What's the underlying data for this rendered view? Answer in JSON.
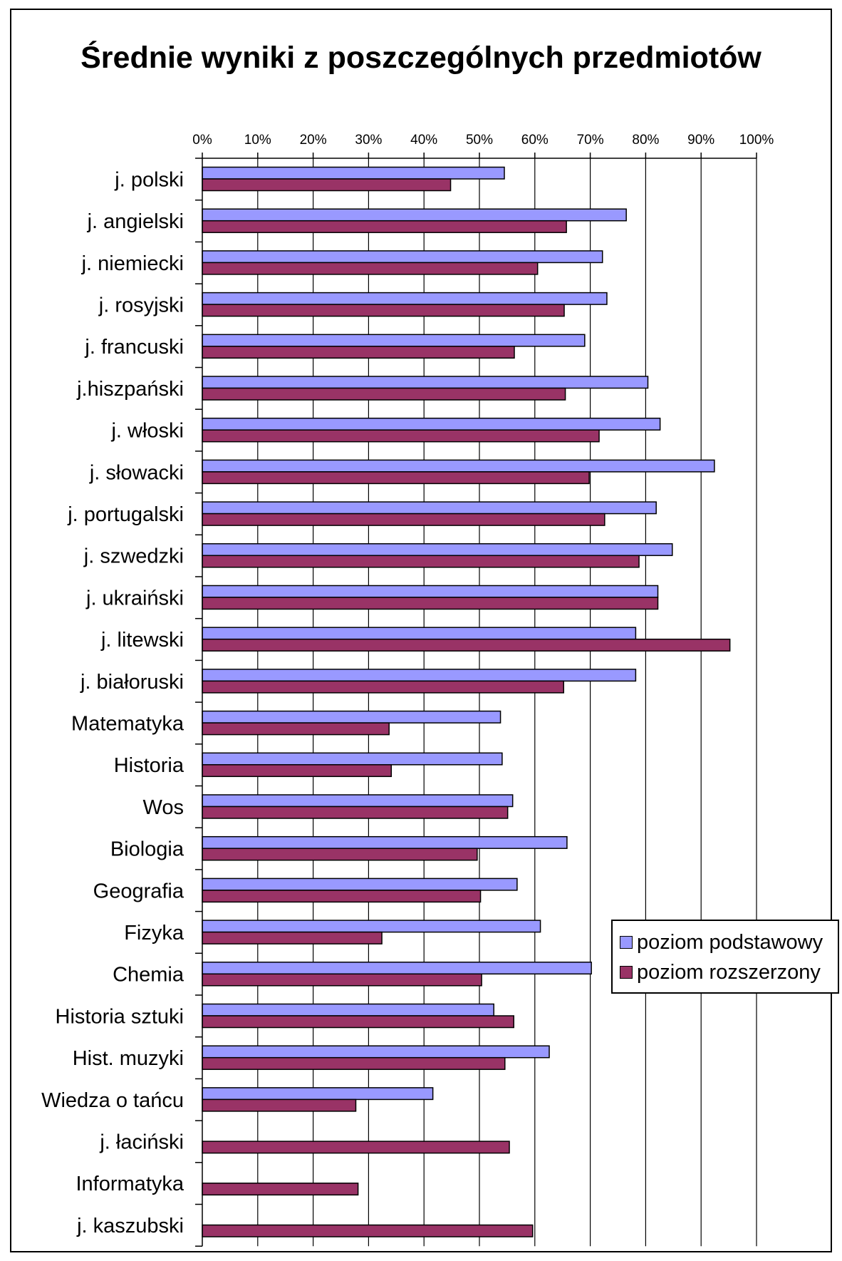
{
  "chart_data": {
    "type": "bar",
    "orientation": "horizontal",
    "title": "Średnie wyniki z poszczególnych przedmiotów",
    "xlabel": "",
    "ylabel": "",
    "xlim": [
      0,
      100
    ],
    "x_tick_labels": [
      "0%",
      "10%",
      "20%",
      "30%",
      "40%",
      "50%",
      "60%",
      "70%",
      "80%",
      "90%",
      "100%"
    ],
    "grid": true,
    "legend_position": "right",
    "categories": [
      "j. polski",
      "j. angielski",
      "j. niemiecki",
      "j. rosyjski",
      "j. francuski",
      "j.hiszpański",
      "j. włoski",
      "j. słowacki",
      "j. portugalski",
      "j. szwedzki",
      "j. ukraiński",
      "j. litewski",
      "j. białoruski",
      "Matematyka",
      "Historia",
      "Wos",
      "Biologia",
      "Geografia",
      "Fizyka",
      "Chemia",
      "Historia sztuki",
      "Hist. muzyki",
      "Wiedza o tańcu",
      "j. łaciński",
      "Informatyka",
      "j. kaszubski"
    ],
    "series": [
      {
        "name": "poziom podstawowy",
        "color": "#9999ff",
        "values": [
          54.5,
          76.5,
          72.2,
          73,
          69,
          80.4,
          82.6,
          92.4,
          81.9,
          84.8,
          82.2,
          78.2,
          78.2,
          53.8,
          54.1,
          56,
          65.8,
          56.8,
          61,
          70.2,
          52.6,
          62.6,
          41.6,
          null,
          null,
          null
        ]
      },
      {
        "name": "poziom rozszerzony",
        "color": "#993366",
        "values": [
          44.8,
          65.7,
          60.5,
          65.3,
          56.3,
          65.5,
          71.6,
          69.8,
          72.6,
          78.8,
          82.2,
          95.2,
          65.2,
          33.7,
          34.1,
          55.1,
          49.6,
          50.2,
          32.4,
          50.4,
          56.2,
          54.6,
          27.7,
          55.4,
          28.1,
          59.6
        ]
      }
    ]
  }
}
